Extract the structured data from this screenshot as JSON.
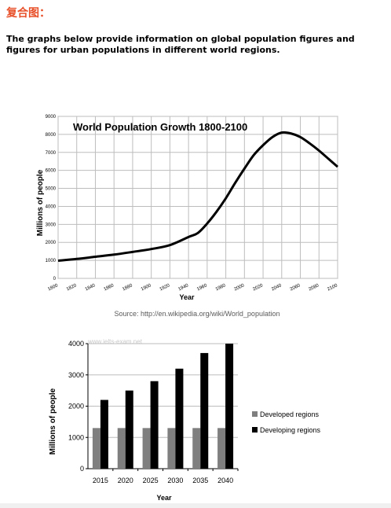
{
  "page": {
    "heading": "复合图：",
    "heading_color": "#e8502a",
    "intro": "The graphs below provide information on global population figures and figures for urban populations in different world regions."
  },
  "chart_data": [
    {
      "type": "line",
      "title": "World Population Growth 1800-2100",
      "xlabel": "Year",
      "ylabel": "Millions of people",
      "source": "Source: http://en.wikipedia.org/wiki/World_population",
      "x_ticks": [
        "1800",
        "1820",
        "1840",
        "1860",
        "1880",
        "1900",
        "1920",
        "1940",
        "1960",
        "1980",
        "2000",
        "2020",
        "2040",
        "2060",
        "2080",
        "2100"
      ],
      "y_ticks": [
        "0",
        "1000",
        "2000",
        "3000",
        "4000",
        "5000",
        "6000",
        "7000",
        "8000",
        "9000"
      ],
      "xlim": [
        1800,
        2100
      ],
      "ylim": [
        0,
        9000
      ],
      "grid": true,
      "series": [
        {
          "x": [
            1800,
            1820,
            1840,
            1860,
            1880,
            1900,
            1920,
            1940,
            1950,
            1960,
            1970,
            1980,
            1990,
            2000,
            2010,
            2020,
            2030,
            2040,
            2050,
            2060,
            2070,
            2080,
            2090,
            2100
          ],
          "y": [
            980,
            1080,
            1200,
            1320,
            1470,
            1630,
            1850,
            2300,
            2520,
            3050,
            3700,
            4450,
            5300,
            6100,
            6850,
            7400,
            7850,
            8100,
            8050,
            7850,
            7500,
            7100,
            6650,
            6200
          ],
          "color": "#000000"
        }
      ]
    },
    {
      "type": "bar",
      "watermark": "www.ielts-exam.net",
      "xlabel": "Year",
      "ylabel": "Millions of people",
      "categories": [
        "2015",
        "2020",
        "2025",
        "2030",
        "2035",
        "2040"
      ],
      "y_ticks": [
        "0",
        "1000",
        "2000",
        "3000",
        "4000"
      ],
      "ylim": [
        0,
        4000
      ],
      "grid": true,
      "legend_position": "right",
      "series": [
        {
          "name": "Developed regions",
          "values": [
            1300,
            1300,
            1300,
            1300,
            1300,
            1300
          ],
          "color": "#7f7f7f"
        },
        {
          "name": "Developing regions",
          "values": [
            2200,
            2500,
            2800,
            3200,
            3700,
            4000
          ],
          "color": "#000000"
        }
      ]
    }
  ]
}
